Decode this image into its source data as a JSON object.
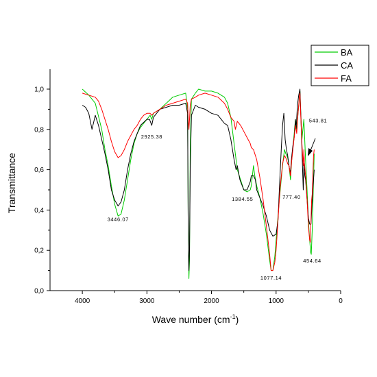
{
  "chart_data": {
    "type": "line",
    "xlabel": "Wave number (cm",
    "xlabel_sup": "-1",
    "xlabel_end": ")",
    "ylabel": "Transmittance",
    "xlim": [
      4500,
      0
    ],
    "ylim": [
      0,
      1.05
    ],
    "x_ticks": [
      4000,
      3000,
      2000,
      1000,
      0
    ],
    "x_tick_labels": [
      "4000",
      "3000",
      "2000",
      "1000",
      "0"
    ],
    "y_ticks": [
      0,
      0.2,
      0.4,
      0.6,
      0.8,
      1.0
    ],
    "y_tick_labels": [
      "0,0",
      "0,2",
      "0,4",
      "0,6",
      "0,8",
      "1,0"
    ],
    "legend_position": "top-right",
    "series": [
      {
        "name": "BA",
        "color": "#00cc00",
        "points": [
          [
            4000,
            1.0
          ],
          [
            3900,
            0.97
          ],
          [
            3800,
            0.93
          ],
          [
            3700,
            0.8
          ],
          [
            3650,
            0.7
          ],
          [
            3600,
            0.62
          ],
          [
            3550,
            0.52
          ],
          [
            3500,
            0.43
          ],
          [
            3446,
            0.37
          ],
          [
            3400,
            0.38
          ],
          [
            3350,
            0.45
          ],
          [
            3300,
            0.55
          ],
          [
            3250,
            0.65
          ],
          [
            3200,
            0.73
          ],
          [
            3150,
            0.78
          ],
          [
            3100,
            0.81
          ],
          [
            3000,
            0.85
          ],
          [
            2950,
            0.87
          ],
          [
            2925,
            0.85
          ],
          [
            2900,
            0.88
          ],
          [
            2800,
            0.9
          ],
          [
            2700,
            0.93
          ],
          [
            2600,
            0.96
          ],
          [
            2500,
            0.97
          ],
          [
            2400,
            0.98
          ],
          [
            2370,
            0.9
          ],
          [
            2360,
            0.3
          ],
          [
            2350,
            0.06
          ],
          [
            2340,
            0.15
          ],
          [
            2330,
            0.7
          ],
          [
            2310,
            0.95
          ],
          [
            2250,
            0.98
          ],
          [
            2200,
            1.0
          ],
          [
            2100,
            0.99
          ],
          [
            2000,
            0.99
          ],
          [
            1900,
            0.98
          ],
          [
            1800,
            0.96
          ],
          [
            1750,
            0.93
          ],
          [
            1700,
            0.86
          ],
          [
            1650,
            0.73
          ],
          [
            1600,
            0.6
          ],
          [
            1550,
            0.55
          ],
          [
            1500,
            0.5
          ],
          [
            1450,
            0.49
          ],
          [
            1400,
            0.5
          ],
          [
            1384,
            0.52
          ],
          [
            1350,
            0.62
          ],
          [
            1330,
            0.57
          ],
          [
            1300,
            0.52
          ],
          [
            1250,
            0.46
          ],
          [
            1200,
            0.38
          ],
          [
            1150,
            0.28
          ],
          [
            1100,
            0.15
          ],
          [
            1077,
            0.1
          ],
          [
            1050,
            0.1
          ],
          [
            1020,
            0.17
          ],
          [
            1000,
            0.25
          ],
          [
            950,
            0.45
          ],
          [
            900,
            0.62
          ],
          [
            870,
            0.7
          ],
          [
            850,
            0.68
          ],
          [
            820,
            0.66
          ],
          [
            800,
            0.62
          ],
          [
            777,
            0.55
          ],
          [
            760,
            0.64
          ],
          [
            720,
            0.78
          ],
          [
            700,
            0.85
          ],
          [
            680,
            0.8
          ],
          [
            660,
            0.88
          ],
          [
            640,
            0.95
          ],
          [
            630,
            0.99
          ],
          [
            620,
            0.9
          ],
          [
            600,
            0.75
          ],
          [
            570,
            0.85
          ],
          [
            560,
            0.78
          ],
          [
            543,
            0.65
          ],
          [
            520,
            0.5
          ],
          [
            500,
            0.35
          ],
          [
            480,
            0.25
          ],
          [
            465,
            0.19
          ],
          [
            455,
            0.18
          ],
          [
            440,
            0.3
          ],
          [
            420,
            0.55
          ],
          [
            410,
            0.68
          ]
        ]
      },
      {
        "name": "CA",
        "color": "#000000",
        "points": [
          [
            4000,
            0.92
          ],
          [
            3950,
            0.91
          ],
          [
            3900,
            0.88
          ],
          [
            3850,
            0.8
          ],
          [
            3800,
            0.87
          ],
          [
            3750,
            0.82
          ],
          [
            3700,
            0.75
          ],
          [
            3650,
            0.68
          ],
          [
            3600,
            0.6
          ],
          [
            3550,
            0.5
          ],
          [
            3500,
            0.45
          ],
          [
            3446,
            0.42
          ],
          [
            3400,
            0.44
          ],
          [
            3350,
            0.5
          ],
          [
            3300,
            0.6
          ],
          [
            3250,
            0.68
          ],
          [
            3200,
            0.74
          ],
          [
            3150,
            0.78
          ],
          [
            3100,
            0.82
          ],
          [
            3000,
            0.85
          ],
          [
            2960,
            0.85
          ],
          [
            2925,
            0.82
          ],
          [
            2900,
            0.86
          ],
          [
            2800,
            0.9
          ],
          [
            2700,
            0.91
          ],
          [
            2600,
            0.92
          ],
          [
            2500,
            0.92
          ],
          [
            2400,
            0.93
          ],
          [
            2370,
            0.88
          ],
          [
            2360,
            0.3
          ],
          [
            2350,
            0.1
          ],
          [
            2340,
            0.2
          ],
          [
            2330,
            0.6
          ],
          [
            2310,
            0.87
          ],
          [
            2250,
            0.92
          ],
          [
            2200,
            0.91
          ],
          [
            2100,
            0.9
          ],
          [
            2000,
            0.88
          ],
          [
            1900,
            0.87
          ],
          [
            1850,
            0.85
          ],
          [
            1800,
            0.83
          ],
          [
            1750,
            0.82
          ],
          [
            1700,
            0.75
          ],
          [
            1650,
            0.65
          ],
          [
            1620,
            0.6
          ],
          [
            1600,
            0.62
          ],
          [
            1560,
            0.55
          ],
          [
            1500,
            0.5
          ],
          [
            1450,
            0.5
          ],
          [
            1400,
            0.54
          ],
          [
            1384,
            0.57
          ],
          [
            1350,
            0.57
          ],
          [
            1320,
            0.55
          ],
          [
            1300,
            0.5
          ],
          [
            1250,
            0.46
          ],
          [
            1200,
            0.42
          ],
          [
            1150,
            0.37
          ],
          [
            1100,
            0.3
          ],
          [
            1050,
            0.27
          ],
          [
            1000,
            0.28
          ],
          [
            970,
            0.35
          ],
          [
            950,
            0.5
          ],
          [
            920,
            0.7
          ],
          [
            900,
            0.82
          ],
          [
            880,
            0.88
          ],
          [
            860,
            0.75
          ],
          [
            840,
            0.7
          ],
          [
            820,
            0.67
          ],
          [
            800,
            0.62
          ],
          [
            780,
            0.58
          ],
          [
            760,
            0.66
          ],
          [
            740,
            0.72
          ],
          [
            720,
            0.76
          ],
          [
            700,
            0.85
          ],
          [
            690,
            0.8
          ],
          [
            670,
            0.92
          ],
          [
            650,
            0.97
          ],
          [
            630,
            1.0
          ],
          [
            620,
            0.9
          ],
          [
            600,
            0.7
          ],
          [
            580,
            0.5
          ],
          [
            570,
            0.63
          ],
          [
            555,
            0.57
          ],
          [
            543,
            0.55
          ],
          [
            520,
            0.45
          ],
          [
            500,
            0.36
          ],
          [
            480,
            0.33
          ],
          [
            460,
            0.33
          ],
          [
            440,
            0.45
          ],
          [
            420,
            0.55
          ],
          [
            410,
            0.6
          ]
        ]
      },
      {
        "name": "FA",
        "color": "#ff0000",
        "points": [
          [
            4000,
            0.98
          ],
          [
            3900,
            0.97
          ],
          [
            3800,
            0.96
          ],
          [
            3750,
            0.94
          ],
          [
            3700,
            0.9
          ],
          [
            3650,
            0.85
          ],
          [
            3600,
            0.8
          ],
          [
            3550,
            0.74
          ],
          [
            3500,
            0.69
          ],
          [
            3446,
            0.66
          ],
          [
            3400,
            0.67
          ],
          [
            3350,
            0.7
          ],
          [
            3300,
            0.74
          ],
          [
            3250,
            0.77
          ],
          [
            3200,
            0.8
          ],
          [
            3150,
            0.82
          ],
          [
            3100,
            0.85
          ],
          [
            3050,
            0.87
          ],
          [
            3000,
            0.88
          ],
          [
            2950,
            0.88
          ],
          [
            2925,
            0.87
          ],
          [
            2900,
            0.88
          ],
          [
            2800,
            0.9
          ],
          [
            2700,
            0.92
          ],
          [
            2600,
            0.93
          ],
          [
            2500,
            0.94
          ],
          [
            2400,
            0.95
          ],
          [
            2370,
            0.93
          ],
          [
            2360,
            0.85
          ],
          [
            2350,
            0.8
          ],
          [
            2340,
            0.85
          ],
          [
            2330,
            0.92
          ],
          [
            2310,
            0.95
          ],
          [
            2250,
            0.96
          ],
          [
            2200,
            0.97
          ],
          [
            2100,
            0.98
          ],
          [
            2000,
            0.97
          ],
          [
            1900,
            0.96
          ],
          [
            1800,
            0.93
          ],
          [
            1750,
            0.9
          ],
          [
            1700,
            0.86
          ],
          [
            1650,
            0.84
          ],
          [
            1630,
            0.8
          ],
          [
            1600,
            0.84
          ],
          [
            1550,
            0.82
          ],
          [
            1500,
            0.79
          ],
          [
            1450,
            0.76
          ],
          [
            1400,
            0.73
          ],
          [
            1384,
            0.71
          ],
          [
            1350,
            0.7
          ],
          [
            1300,
            0.65
          ],
          [
            1250,
            0.56
          ],
          [
            1200,
            0.45
          ],
          [
            1150,
            0.32
          ],
          [
            1100,
            0.18
          ],
          [
            1077,
            0.1
          ],
          [
            1050,
            0.1
          ],
          [
            1020,
            0.14
          ],
          [
            1000,
            0.2
          ],
          [
            970,
            0.35
          ],
          [
            940,
            0.5
          ],
          [
            900,
            0.63
          ],
          [
            870,
            0.67
          ],
          [
            850,
            0.66
          ],
          [
            820,
            0.63
          ],
          [
            800,
            0.62
          ],
          [
            777,
            0.57
          ],
          [
            760,
            0.64
          ],
          [
            740,
            0.7
          ],
          [
            720,
            0.76
          ],
          [
            700,
            0.82
          ],
          [
            680,
            0.78
          ],
          [
            660,
            0.88
          ],
          [
            640,
            0.96
          ],
          [
            630,
            0.98
          ],
          [
            620,
            0.88
          ],
          [
            600,
            0.73
          ],
          [
            580,
            0.62
          ],
          [
            570,
            0.7
          ],
          [
            560,
            0.63
          ],
          [
            543,
            0.57
          ],
          [
            520,
            0.45
          ],
          [
            500,
            0.32
          ],
          [
            480,
            0.25
          ],
          [
            470,
            0.24
          ],
          [
            460,
            0.35
          ],
          [
            450,
            0.45
          ],
          [
            440,
            0.48
          ],
          [
            430,
            0.58
          ],
          [
            420,
            0.67
          ],
          [
            410,
            0.7
          ]
        ]
      }
    ],
    "annotations": [
      {
        "text": "3446.07",
        "x": 3446,
        "y": 0.345
      },
      {
        "text": "2925.38",
        "x": 2925,
        "y": 0.755
      },
      {
        "text": "1384.55",
        "x": 1520,
        "y": 0.445
      },
      {
        "text": "777.40",
        "x": 760,
        "y": 0.455
      },
      {
        "text": "543.81",
        "x": 350,
        "y": 0.835
      },
      {
        "text": "1077.14",
        "x": 1077,
        "y": 0.055
      },
      {
        "text": "454.64",
        "x": 440,
        "y": 0.14
      }
    ]
  }
}
